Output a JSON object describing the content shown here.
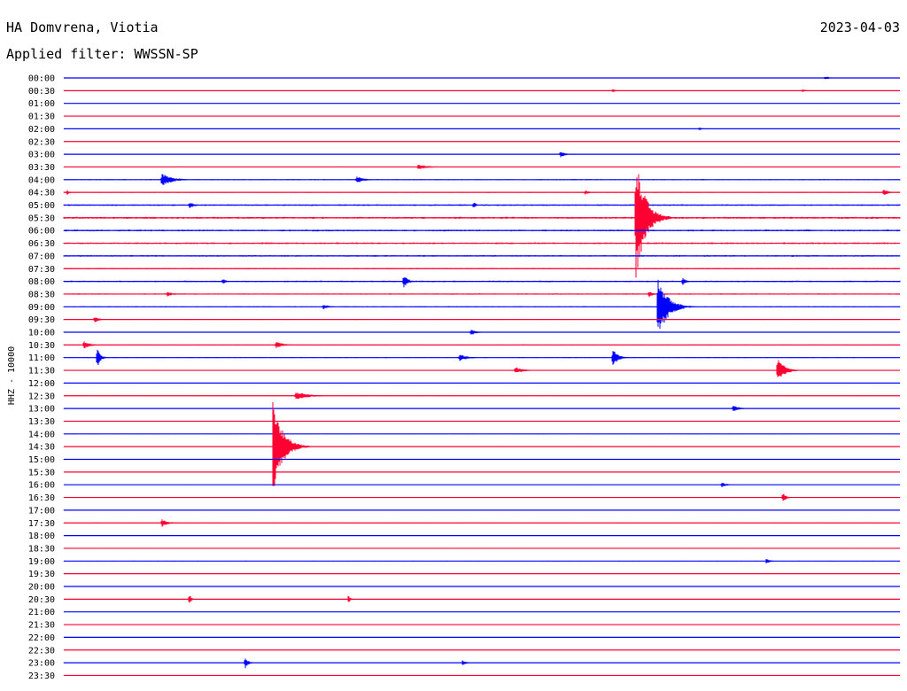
{
  "header": {
    "station": "HA Domvrena, Viotia",
    "date": "2023-04-03",
    "filter": "Applied filter: WWSSN-SP"
  },
  "colors": {
    "even_trace": "#0000ff",
    "odd_trace": "#ff0033",
    "text": "#000000",
    "background": "#ffffff"
  },
  "chart_data": {
    "type": "line",
    "title": "HA Domvrena, Viotia",
    "subtitle": "Applied filter: WWSSN-SP",
    "ylabel": "HHZ - 10000",
    "xlabel": "",
    "trace_labels": [
      "00:00",
      "00:30",
      "01:00",
      "01:30",
      "02:00",
      "02:30",
      "03:00",
      "03:30",
      "04:00",
      "04:30",
      "05:00",
      "05:30",
      "06:00",
      "06:30",
      "07:00",
      "07:30",
      "08:00",
      "08:30",
      "09:00",
      "09:30",
      "10:00",
      "10:30",
      "11:00",
      "11:30",
      "12:00",
      "12:30",
      "13:00",
      "13:30",
      "14:00",
      "14:30",
      "15:00",
      "15:30",
      "16:00",
      "16:30",
      "17:00",
      "17:30",
      "18:00",
      "18:30",
      "19:00",
      "19:30",
      "20:00",
      "20:30",
      "21:00",
      "21:30",
      "22:00",
      "22:30",
      "23:00",
      "23:30"
    ],
    "x_range_minutes": [
      0,
      30
    ],
    "noise_level": [
      0.2,
      0.2,
      0.2,
      0.2,
      0.2,
      0.2,
      0.3,
      0.4,
      0.5,
      0.5,
      0.7,
      0.9,
      0.8,
      0.8,
      0.7,
      0.6,
      0.7,
      0.6,
      0.5,
      0.4,
      0.4,
      0.4,
      0.4,
      0.4,
      0.3,
      0.3,
      0.3,
      0.2,
      0.3,
      0.3,
      0.3,
      0.2,
      0.2,
      0.3,
      0.2,
      0.3,
      0.2,
      0.2,
      0.3,
      0.2,
      0.2,
      0.3,
      0.2,
      0.2,
      0.2,
      0.2,
      0.3,
      0.2
    ],
    "events": [
      {
        "trace": 0,
        "minute": 27.3,
        "amplitude": 2,
        "duration_min": 0.6
      },
      {
        "trace": 1,
        "minute": 19.7,
        "amplitude": 2,
        "duration_min": 0.3
      },
      {
        "trace": 1,
        "minute": 26.5,
        "amplitude": 2,
        "duration_min": 0.3
      },
      {
        "trace": 4,
        "minute": 22.8,
        "amplitude": 2,
        "duration_min": 0.3
      },
      {
        "trace": 6,
        "minute": 17.8,
        "amplitude": 4,
        "duration_min": 0.5
      },
      {
        "trace": 7,
        "minute": 12.7,
        "amplitude": 3,
        "duration_min": 1.2
      },
      {
        "trace": 8,
        "minute": 3.5,
        "amplitude": 8,
        "duration_min": 1.0
      },
      {
        "trace": 8,
        "minute": 10.5,
        "amplitude": 4,
        "duration_min": 0.8
      },
      {
        "trace": 9,
        "minute": 0.1,
        "amplitude": 4,
        "duration_min": 0.2
      },
      {
        "trace": 9,
        "minute": 18.7,
        "amplitude": 3,
        "duration_min": 0.4
      },
      {
        "trace": 9,
        "minute": 29.4,
        "amplitude": 5,
        "duration_min": 0.4
      },
      {
        "trace": 10,
        "minute": 4.5,
        "amplitude": 4,
        "duration_min": 0.5
      },
      {
        "trace": 10,
        "minute": 14.7,
        "amplitude": 5,
        "duration_min": 0.2
      },
      {
        "trace": 11,
        "minute": 20.5,
        "amplitude": 75,
        "duration_min": 0.9
      },
      {
        "trace": 16,
        "minute": 12.2,
        "amplitude": 8,
        "duration_min": 0.4
      },
      {
        "trace": 16,
        "minute": 5.7,
        "amplitude": 4,
        "duration_min": 0.3
      },
      {
        "trace": 16,
        "minute": 22.2,
        "amplitude": 6,
        "duration_min": 0.3
      },
      {
        "trace": 17,
        "minute": 3.7,
        "amplitude": 3,
        "duration_min": 0.6
      },
      {
        "trace": 17,
        "minute": 21.0,
        "amplitude": 4,
        "duration_min": 0.4
      },
      {
        "trace": 18,
        "minute": 21.3,
        "amplitude": 40,
        "duration_min": 0.9
      },
      {
        "trace": 18,
        "minute": 9.3,
        "amplitude": 3,
        "duration_min": 0.6
      },
      {
        "trace": 19,
        "minute": 1.1,
        "amplitude": 4,
        "duration_min": 0.4
      },
      {
        "trace": 20,
        "minute": 14.6,
        "amplitude": 4,
        "duration_min": 0.5
      },
      {
        "trace": 21,
        "minute": 0.7,
        "amplitude": 5,
        "duration_min": 0.6
      },
      {
        "trace": 21,
        "minute": 7.6,
        "amplitude": 4,
        "duration_min": 0.8
      },
      {
        "trace": 22,
        "minute": 1.2,
        "amplitude": 12,
        "duration_min": 0.3
      },
      {
        "trace": 22,
        "minute": 19.7,
        "amplitude": 10,
        "duration_min": 0.5
      },
      {
        "trace": 22,
        "minute": 14.2,
        "amplitude": 4,
        "duration_min": 0.8
      },
      {
        "trace": 23,
        "minute": 25.6,
        "amplitude": 14,
        "duration_min": 0.7
      },
      {
        "trace": 23,
        "minute": 16.2,
        "amplitude": 4,
        "duration_min": 0.8
      },
      {
        "trace": 25,
        "minute": 8.3,
        "amplitude": 5,
        "duration_min": 1.2
      },
      {
        "trace": 26,
        "minute": 24.0,
        "amplitude": 4,
        "duration_min": 0.6
      },
      {
        "trace": 29,
        "minute": 7.5,
        "amplitude": 55,
        "duration_min": 0.9
      },
      {
        "trace": 32,
        "minute": 23.6,
        "amplitude": 3,
        "duration_min": 0.5
      },
      {
        "trace": 33,
        "minute": 25.8,
        "amplitude": 6,
        "duration_min": 0.3
      },
      {
        "trace": 35,
        "minute": 3.5,
        "amplitude": 5,
        "duration_min": 0.6
      },
      {
        "trace": 38,
        "minute": 25.2,
        "amplitude": 3,
        "duration_min": 0.4
      },
      {
        "trace": 41,
        "minute": 4.5,
        "amplitude": 6,
        "duration_min": 0.2
      },
      {
        "trace": 41,
        "minute": 10.2,
        "amplitude": 5,
        "duration_min": 0.2
      },
      {
        "trace": 46,
        "minute": 6.5,
        "amplitude": 7,
        "duration_min": 0.3
      },
      {
        "trace": 46,
        "minute": 14.3,
        "amplitude": 3,
        "duration_min": 0.4
      }
    ]
  }
}
